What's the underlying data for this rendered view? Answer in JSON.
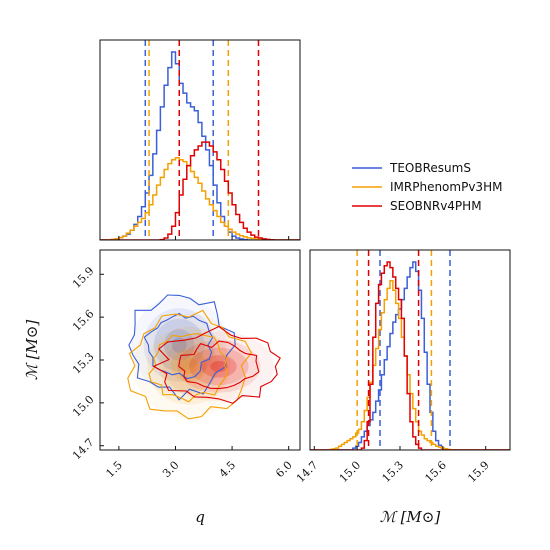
{
  "chart_data": {
    "type": "corner",
    "parameters": [
      {
        "name": "q",
        "label": "q",
        "range": [
          1.0,
          6.3
        ],
        "ticks": [
          1.5,
          3.0,
          4.5,
          6.0
        ],
        "tick_labels": [
          "1.5",
          "3.0",
          "4.5",
          "6.0"
        ]
      },
      {
        "name": "chirp_mass",
        "label": "ℳ [M⊙]",
        "range": [
          14.67,
          16.07
        ],
        "ticks": [
          14.7,
          15.0,
          15.3,
          15.6,
          15.9
        ],
        "tick_labels": [
          "14.7",
          "15.0",
          "15.3",
          "15.6",
          "15.9"
        ]
      }
    ],
    "series": [
      {
        "name": "TEOBResumS",
        "color": "#3a5fd9",
        "q_quantiles": [
          2.2,
          4.0
        ],
        "chirp_mass_quantiles": [
          15.16,
          15.65
        ],
        "q_hist": {
          "start": 1.0,
          "step": 0.1,
          "values": [
            0,
            0,
            0,
            0.002,
            0.005,
            0.012,
            0.02,
            0.03,
            0.05,
            0.08,
            0.12,
            0.17,
            0.24,
            0.33,
            0.44,
            0.56,
            0.68,
            0.79,
            0.88,
            0.96,
            0.9,
            0.8,
            0.75,
            0.7,
            0.68,
            0.66,
            0.6,
            0.53,
            0.46,
            0.38,
            0.28,
            0.19,
            0.12,
            0.07,
            0.04,
            0.02,
            0.01,
            0.005,
            0.002,
            0,
            0,
            0,
            0,
            0,
            0,
            0,
            0,
            0,
            0,
            0,
            0,
            0,
            0
          ]
        },
        "chirp_mass_hist": {
          "start": 14.67,
          "step": 0.02,
          "values": [
            0,
            0,
            0,
            0,
            0,
            0,
            0,
            0,
            0,
            0,
            0,
            0,
            0,
            0,
            0,
            0.01,
            0.02,
            0.04,
            0.07,
            0.1,
            0.13,
            0.16,
            0.2,
            0.26,
            0.32,
            0.4,
            0.48,
            0.55,
            0.62,
            0.68,
            0.72,
            0.75,
            0.8,
            0.86,
            0.92,
            0.97,
            1.0,
            0.95,
            0.85,
            0.7,
            0.52,
            0.35,
            0.2,
            0.1,
            0.05,
            0.025,
            0.01,
            0.005,
            0.002,
            0,
            0,
            0,
            0,
            0,
            0,
            0,
            0,
            0,
            0,
            0,
            0,
            0,
            0,
            0,
            0,
            0,
            0,
            0,
            0,
            0
          ]
        }
      },
      {
        "name": "IMRPhenomPv3HM",
        "color": "#f5a000",
        "q_quantiles": [
          2.3,
          4.4
        ],
        "chirp_mass_quantiles": [
          15.0,
          15.52
        ],
        "q_hist": {
          "start": 1.0,
          "step": 0.1,
          "values": [
            0,
            0,
            0,
            0.003,
            0.006,
            0.012,
            0.02,
            0.035,
            0.05,
            0.07,
            0.09,
            0.11,
            0.14,
            0.18,
            0.23,
            0.28,
            0.32,
            0.36,
            0.39,
            0.41,
            0.42,
            0.41,
            0.4,
            0.38,
            0.35,
            0.32,
            0.29,
            0.25,
            0.21,
            0.18,
            0.15,
            0.12,
            0.09,
            0.07,
            0.055,
            0.04,
            0.03,
            0.022,
            0.016,
            0.011,
            0.008,
            0.005,
            0.003,
            0.002,
            0.001,
            0,
            0,
            0,
            0,
            0,
            0,
            0,
            0
          ]
        },
        "chirp_mass_hist": {
          "start": 14.67,
          "step": 0.02,
          "values": [
            0,
            0,
            0,
            0,
            0,
            0,
            0,
            0.003,
            0.006,
            0.01,
            0.02,
            0.03,
            0.04,
            0.05,
            0.06,
            0.07,
            0.09,
            0.11,
            0.15,
            0.21,
            0.28,
            0.36,
            0.45,
            0.54,
            0.64,
            0.73,
            0.8,
            0.86,
            0.9,
            0.85,
            0.78,
            0.7,
            0.6,
            0.5,
            0.4,
            0.3,
            0.22,
            0.15,
            0.1,
            0.08,
            0.06,
            0.05,
            0.04,
            0.03,
            0.02,
            0.015,
            0.01,
            0.006,
            0.003,
            0.001,
            0,
            0,
            0,
            0,
            0,
            0,
            0,
            0,
            0,
            0,
            0,
            0,
            0,
            0,
            0,
            0,
            0,
            0,
            0,
            0
          ]
        }
      },
      {
        "name": "SEOBNRv4PHM",
        "color": "#e00000",
        "q_quantiles": [
          3.1,
          5.2
        ],
        "chirp_mass_quantiles": [
          15.08,
          15.43
        ],
        "q_hist": {
          "start": 1.0,
          "step": 0.1,
          "values": [
            0,
            0,
            0,
            0,
            0,
            0,
            0,
            0,
            0,
            0,
            0,
            0,
            0,
            0,
            0,
            0,
            0.002,
            0.01,
            0.03,
            0.07,
            0.14,
            0.23,
            0.31,
            0.38,
            0.43,
            0.46,
            0.48,
            0.5,
            0.5,
            0.48,
            0.45,
            0.41,
            0.36,
            0.3,
            0.24,
            0.18,
            0.13,
            0.09,
            0.06,
            0.04,
            0.025,
            0.015,
            0.01,
            0.006,
            0.003,
            0.001,
            0,
            0,
            0,
            0,
            0,
            0,
            0
          ]
        },
        "chirp_mass_hist": {
          "start": 14.67,
          "step": 0.02,
          "values": [
            0,
            0,
            0,
            0,
            0,
            0,
            0,
            0,
            0,
            0,
            0,
            0,
            0,
            0,
            0,
            0,
            0,
            0,
            0.01,
            0.05,
            0.15,
            0.35,
            0.6,
            0.78,
            0.88,
            0.94,
            0.98,
            1.0,
            0.97,
            0.92,
            0.86,
            0.8,
            0.7,
            0.5,
            0.3,
            0.15,
            0.07,
            0.03,
            0.01,
            0,
            0,
            0,
            0,
            0,
            0,
            0,
            0,
            0,
            0,
            0,
            0,
            0,
            0,
            0,
            0,
            0,
            0,
            0,
            0,
            0,
            0,
            0,
            0,
            0,
            0,
            0,
            0,
            0,
            0,
            0
          ]
        }
      }
    ],
    "legend": {
      "placement": "upper-right",
      "entries": [
        "TEOBResumS",
        "IMRPhenomPv3HM",
        "SEOBNRv4PHM"
      ]
    }
  }
}
